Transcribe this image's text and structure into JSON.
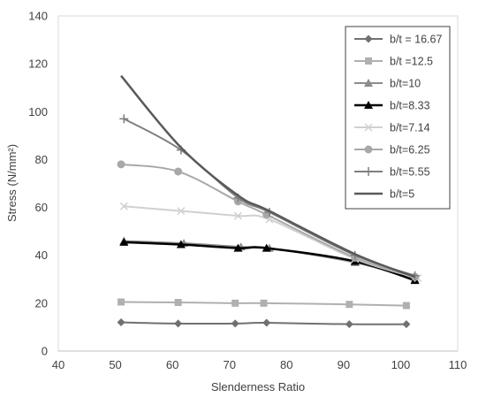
{
  "chart_data": {
    "type": "line",
    "xlabel": "Slenderness Ratio",
    "ylabel": "Stress (N/mm²)",
    "xlim": [
      40,
      110
    ],
    "ylim": [
      0,
      140
    ],
    "x_ticks": [
      40,
      50,
      60,
      70,
      80,
      90,
      100,
      110
    ],
    "y_ticks": [
      0,
      20,
      40,
      60,
      80,
      100,
      120,
      140
    ],
    "grid": false,
    "legend_position": "top-right",
    "series": [
      {
        "name": "b/t = 16.67",
        "color": "#707070",
        "marker": "diamond",
        "width": 2,
        "x": [
          51,
          61,
          71,
          76.5,
          91,
          101
        ],
        "y": [
          12,
          11.5,
          11.5,
          11.8,
          11.2,
          11.2
        ]
      },
      {
        "name": "b/t =12.5",
        "color": "#b0b0b0",
        "marker": "square",
        "width": 2,
        "x": [
          51,
          61,
          71,
          76,
          91,
          101
        ],
        "y": [
          20.5,
          20.3,
          20,
          20,
          19.5,
          19
        ]
      },
      {
        "name": "b/t=10",
        "color": "#8c8c8c",
        "marker": "triangle",
        "width": 2,
        "x": [
          51.5,
          62,
          72,
          77,
          92,
          102.5
        ],
        "y": [
          46,
          45,
          43.5,
          43,
          37,
          30
        ]
      },
      {
        "name": "b/t=8.33",
        "color": "#000000",
        "marker": "triangle",
        "width": 2.5,
        "x": [
          51.5,
          61.5,
          71.5,
          76.5,
          92,
          102.5
        ],
        "y": [
          45.5,
          44.5,
          43,
          43,
          37.5,
          29.5
        ]
      },
      {
        "name": "b/t=7.14",
        "color": "#d0d0d0",
        "marker": "x",
        "width": 2,
        "x": [
          51.5,
          61.5,
          71.5,
          77,
          92,
          103
        ],
        "y": [
          60.5,
          58.5,
          56.5,
          55,
          38.5,
          30.5
        ]
      },
      {
        "name": "b/t=6.25",
        "color": "#a8a8a8",
        "marker": "circle",
        "width": 2,
        "x": [
          51,
          61,
          71.5,
          76.5,
          92,
          102.5
        ],
        "y": [
          78,
          75,
          62.5,
          57,
          39,
          31
        ]
      },
      {
        "name": "b/t=5.55",
        "color": "#7f7f7f",
        "marker": "plus",
        "width": 2,
        "x": [
          51.5,
          61.5,
          71.5,
          77,
          92,
          102.5
        ],
        "y": [
          97,
          84,
          64,
          58,
          40,
          31.5
        ]
      },
      {
        "name": "b/t=5",
        "color": "#5a5a5a",
        "marker": "none",
        "width": 2.5,
        "x": [
          51,
          61.5,
          71.5,
          77,
          92,
          102.5
        ],
        "y": [
          115,
          85,
          65,
          58.5,
          40.5,
          31
        ]
      }
    ]
  }
}
